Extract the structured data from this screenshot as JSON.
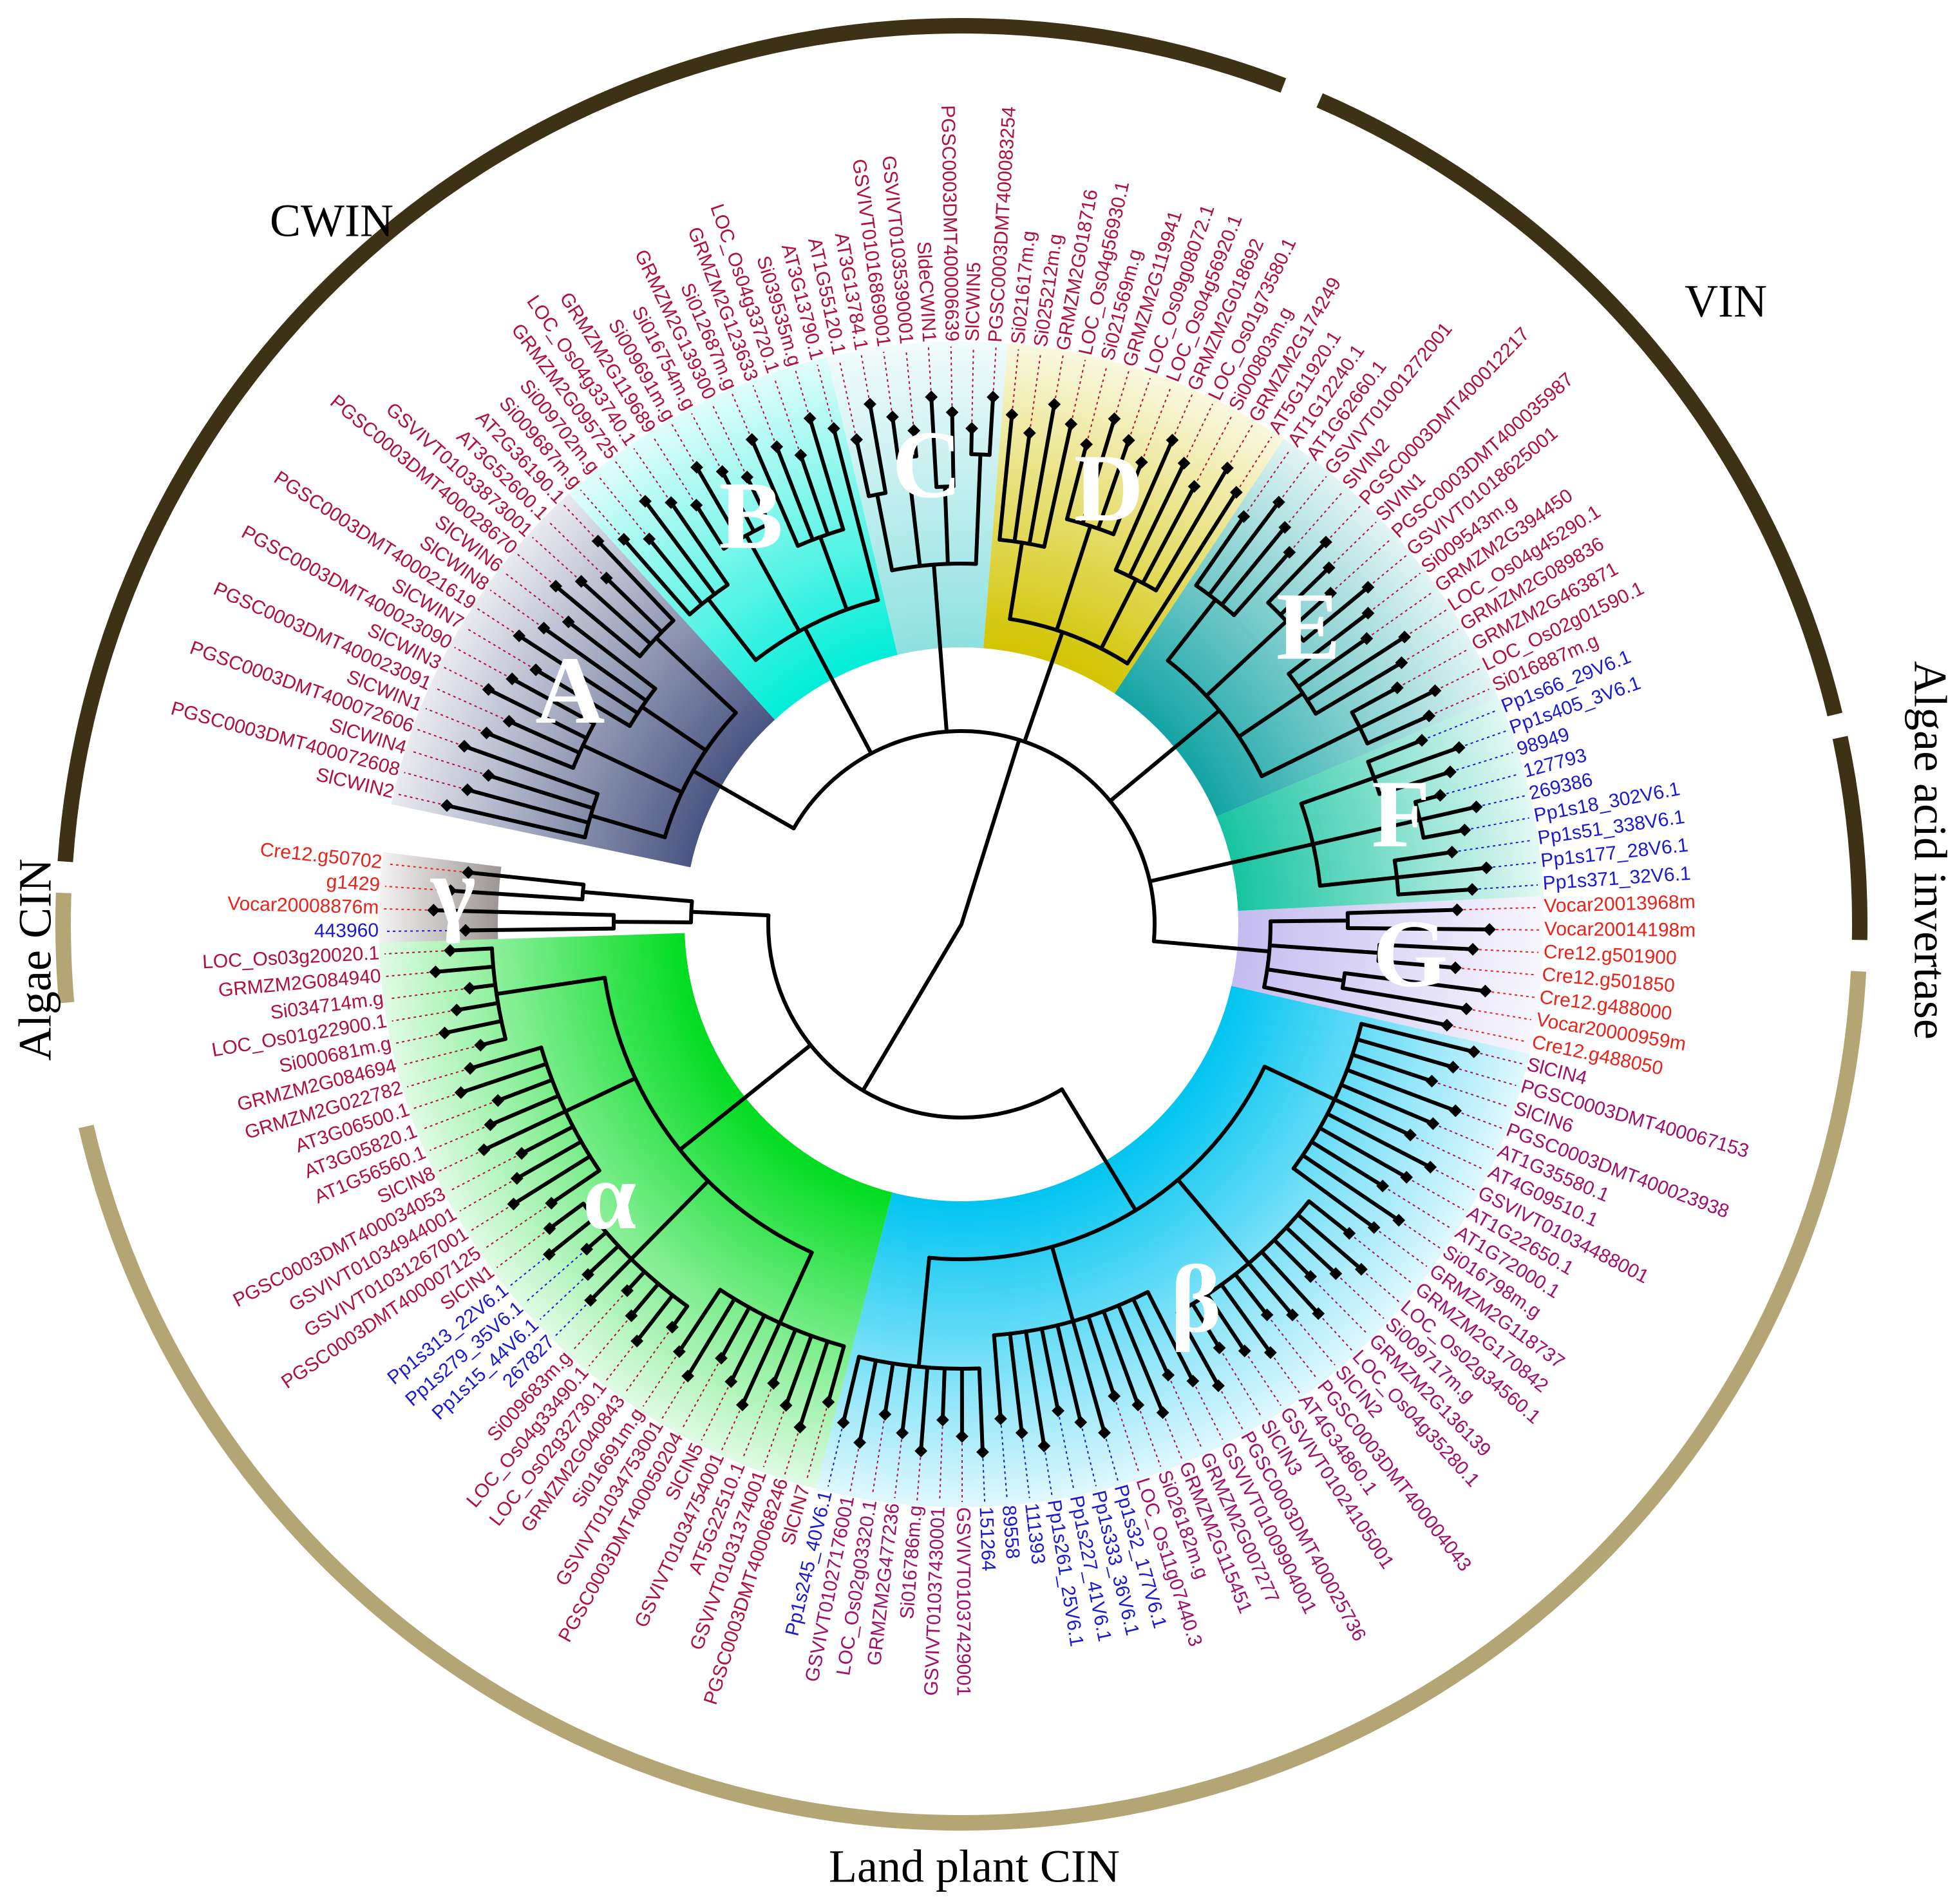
{
  "outer_groups": [
    {
      "label": "CWIN",
      "color": "#3d3216"
    },
    {
      "label": "VIN",
      "color": "#3d3216"
    },
    {
      "label": "Algae acid invertase",
      "color": "#3d3216"
    },
    {
      "label": "Land plant CIN",
      "color": "#b3a574"
    },
    {
      "label": "Algae CIN",
      "color": "#b3a574"
    }
  ],
  "clades": [
    {
      "label": "A",
      "color": "#4a5582",
      "leaves": [
        {
          "label": "SlCWIN2",
          "color": "#b0103c"
        },
        {
          "label": "PGSC0003DMT400072608",
          "color": "#b0103c"
        },
        {
          "label": "SlCWIN4",
          "color": "#b0103c"
        },
        {
          "label": "PGSC0003DMT400072606",
          "color": "#b0103c"
        },
        {
          "label": "SlCWIN1",
          "color": "#b0103c"
        },
        {
          "label": "PGSC0003DMT400023091",
          "color": "#b0103c"
        },
        {
          "label": "SlCWIN3",
          "color": "#b0103c"
        },
        {
          "label": "PGSC0003DMT400023090",
          "color": "#b0103c"
        },
        {
          "label": "SlCWIN7",
          "color": "#b0103c"
        },
        {
          "label": "PGSC0003DMT400021619",
          "color": "#b0103c"
        },
        {
          "label": "SlCWIN8",
          "color": "#b0103c"
        },
        {
          "label": "SlCWIN6",
          "color": "#b0103c"
        },
        {
          "label": "PGSC0003DMT400028670",
          "color": "#b0103c"
        },
        {
          "label": "GSVIVT01033873001",
          "color": "#b0103c"
        },
        {
          "label": "AT3G52600.1",
          "color": "#b0103c"
        },
        {
          "label": "AT2G36190.1",
          "color": "#b0103c"
        }
      ]
    },
    {
      "label": "B",
      "color": "#00eed8",
      "leaves": [
        {
          "label": "Si009687m.g",
          "color": "#b0103c"
        },
        {
          "label": "Si009702m.g",
          "color": "#b0103c"
        },
        {
          "label": "GRMZM2G095725",
          "color": "#b0103c"
        },
        {
          "label": "LOC_Os04g33740.1",
          "color": "#b0103c"
        },
        {
          "label": "GRMZM2G119689",
          "color": "#b0103c"
        },
        {
          "label": "Si009691m.g",
          "color": "#b0103c"
        },
        {
          "label": "Si016754m.g",
          "color": "#b0103c"
        },
        {
          "label": "GRMZM2G139300",
          "color": "#b0103c"
        },
        {
          "label": "Si012687m.g",
          "color": "#b0103c"
        },
        {
          "label": "GRMZM2G123633",
          "color": "#b0103c"
        },
        {
          "label": "LOC_Os04g33720.1",
          "color": "#b0103c"
        },
        {
          "label": "Si039535m.g",
          "color": "#b0103c"
        },
        {
          "label": "AT3G13790.1",
          "color": "#b0103c"
        }
      ]
    },
    {
      "label": "C",
      "color": "#8ee0e0",
      "leaves": [
        {
          "label": "AT1G55120.1",
          "color": "#b0103c"
        },
        {
          "label": "AT3G13784.1",
          "color": "#b0103c"
        },
        {
          "label": "GSVIVT01016869001",
          "color": "#b0103c"
        },
        {
          "label": "GSVIVT01035390001",
          "color": "#b0103c"
        },
        {
          "label": "SldeCWIN1",
          "color": "#b0103c"
        },
        {
          "label": "PGSC0003DMT400006639",
          "color": "#b0103c"
        },
        {
          "label": "SlCWIN5",
          "color": "#b0103c"
        },
        {
          "label": "PGSC0003DMT400083254",
          "color": "#b0103c"
        }
      ]
    },
    {
      "label": "D",
      "color": "#d2c400",
      "leaves": [
        {
          "label": "Si021617m.g",
          "color": "#b0103c"
        },
        {
          "label": "Si025212m.g",
          "color": "#b0103c"
        },
        {
          "label": "GRMZM2G018716",
          "color": "#b0103c"
        },
        {
          "label": "LOC_Os04g56930.1",
          "color": "#b0103c"
        },
        {
          "label": "Si021569m.g",
          "color": "#b0103c"
        },
        {
          "label": "GRMZM2G119941",
          "color": "#b0103c"
        },
        {
          "label": "LOC_Os09g08072.1",
          "color": "#b0103c"
        },
        {
          "label": "LOC_Os04g56920.1",
          "color": "#b0103c"
        },
        {
          "label": "GRMZM2G018692",
          "color": "#b0103c"
        },
        {
          "label": "LOC_Os01g73580.1",
          "color": "#b0103c"
        },
        {
          "label": "Si000803m.g",
          "color": "#b0103c"
        },
        {
          "label": "GRMZM2G174249",
          "color": "#b0103c"
        },
        {
          "label": "AT5G11920.1",
          "color": "#b0103c"
        }
      ]
    },
    {
      "label": "E",
      "color": "#14a4a4",
      "leaves": [
        {
          "label": "AT1G12240.1",
          "color": "#b0103c"
        },
        {
          "label": "AT1G62660.1",
          "color": "#b0103c"
        },
        {
          "label": "GSVIVT01001272001",
          "color": "#b0103c"
        },
        {
          "label": "SlVIN2",
          "color": "#b0103c"
        },
        {
          "label": "PGSC0003DMT400012217",
          "color": "#b0103c"
        },
        {
          "label": "SlVIN1",
          "color": "#b0103c"
        },
        {
          "label": "PGSC0003DMT400035987",
          "color": "#b0103c"
        },
        {
          "label": "GSVIVT01018625001",
          "color": "#b0103c"
        },
        {
          "label": "Si009543m.g",
          "color": "#b0103c"
        },
        {
          "label": "GRMZM2G394450",
          "color": "#b0103c"
        },
        {
          "label": "LOC_Os04g45290.1",
          "color": "#b0103c"
        },
        {
          "label": "GRMZM2G089836",
          "color": "#b0103c"
        },
        {
          "label": "GRMZM2G463871",
          "color": "#b0103c"
        },
        {
          "label": "LOC_Os02g01590.1",
          "color": "#b0103c"
        },
        {
          "label": "Si016887m.g",
          "color": "#b0103c"
        }
      ]
    },
    {
      "label": "F",
      "color": "#16c4a0",
      "leaves": [
        {
          "label": "Pp1s66_29V6.1",
          "color": "#1a1ad0"
        },
        {
          "label": "Pp1s405_3V6.1",
          "color": "#1a1ad0"
        },
        {
          "label": "98949",
          "color": "#1a1ad0"
        },
        {
          "label": "127793",
          "color": "#1a1ad0"
        },
        {
          "label": "269386",
          "color": "#1a1ad0"
        },
        {
          "label": "Pp1s18_302V6.1",
          "color": "#1a1ad0"
        },
        {
          "label": "Pp1s51_338V6.1",
          "color": "#1a1ad0"
        },
        {
          "label": "Pp1s177_28V6.1",
          "color": "#1a1ad0"
        },
        {
          "label": "Pp1s371_32V6.1",
          "color": "#1a1ad0"
        }
      ]
    },
    {
      "label": "G",
      "color": "#c4bcf0",
      "leaves": [
        {
          "label": "Vocar20013968m",
          "color": "#e8231c"
        },
        {
          "label": "Vocar20014198m",
          "color": "#e8231c"
        },
        {
          "label": "Cre12.g501900",
          "color": "#e8231c"
        },
        {
          "label": "Cre12.g501850",
          "color": "#e8231c"
        },
        {
          "label": "Cre12.g488000",
          "color": "#e8231c"
        },
        {
          "label": "Vocar20000959m",
          "color": "#e8231c"
        },
        {
          "label": "Cre12.g488050",
          "color": "#e8231c"
        }
      ]
    },
    {
      "label": "β",
      "color": "#00c4f0",
      "leaves": [
        {
          "label": "SlCIN4",
          "color": "#a0106a"
        },
        {
          "label": "PGSC0003DMT400067153",
          "color": "#a0106a"
        },
        {
          "label": "SlCIN6",
          "color": "#a0106a"
        },
        {
          "label": "PGSC0003DMT400023938",
          "color": "#a0106a"
        },
        {
          "label": "AT1G35580.1",
          "color": "#a0106a"
        },
        {
          "label": "AT4G09510.1",
          "color": "#a0106a"
        },
        {
          "label": "GSVIVT01034488001",
          "color": "#a0106a"
        },
        {
          "label": "AT1G22650.1",
          "color": "#a0106a"
        },
        {
          "label": "AT1G72000.1",
          "color": "#a0106a"
        },
        {
          "label": "Si016798m.g",
          "color": "#a0106a"
        },
        {
          "label": "GRMZM2G118737",
          "color": "#a0106a"
        },
        {
          "label": "GRMZM2G170842",
          "color": "#a0106a"
        },
        {
          "label": "LOC_Os02g34560.1",
          "color": "#a0106a"
        },
        {
          "label": "Si009717m.g",
          "color": "#a0106a"
        },
        {
          "label": "GRMZM2G136139",
          "color": "#a0106a"
        },
        {
          "label": "LOC_Os04g35280.1",
          "color": "#a0106a"
        },
        {
          "label": "SlCIN2",
          "color": "#a0106a"
        },
        {
          "label": "PGSC0003DMT400004043",
          "color": "#a0106a"
        },
        {
          "label": "AT4G34860.1",
          "color": "#a0106a"
        },
        {
          "label": "GSVIVT01024105001",
          "color": "#a0106a"
        },
        {
          "label": "SlCIN3",
          "color": "#a0106a"
        },
        {
          "label": "PGSC0003DMT400025736",
          "color": "#a0106a"
        },
        {
          "label": "GSVIVT01009904001",
          "color": "#a0106a"
        },
        {
          "label": "GRMZM2G007277",
          "color": "#a0106a"
        },
        {
          "label": "GRMZM2G115451",
          "color": "#a0106a"
        },
        {
          "label": "Si026182m.g",
          "color": "#a0106a"
        },
        {
          "label": "LOC_Os11g07440.3",
          "color": "#a0106a"
        },
        {
          "label": "Pp1s32_177V6.1",
          "color": "#1a1ad0"
        },
        {
          "label": "Pp1s333_36V6.1",
          "color": "#1a1ad0"
        },
        {
          "label": "Pp1s227_41V6.1",
          "color": "#1a1ad0"
        },
        {
          "label": "Pp1s261_25V6.1",
          "color": "#1a1ad0"
        },
        {
          "label": "111393",
          "color": "#1a1ad0"
        },
        {
          "label": "89558",
          "color": "#1a1ad0"
        },
        {
          "label": "151264",
          "color": "#1a1ad0"
        },
        {
          "label": "GSVIVT01037429001",
          "color": "#a0106a"
        },
        {
          "label": "GSVIVT01037430001",
          "color": "#a0106a"
        },
        {
          "label": "Si016786m.g",
          "color": "#a0106a"
        },
        {
          "label": "GRMZM2G477236",
          "color": "#a0106a"
        },
        {
          "label": "LOC_Os02g03320.1",
          "color": "#a0106a"
        },
        {
          "label": "GSVIVT01027176001",
          "color": "#a0106a"
        },
        {
          "label": "Pp1s245_40V6.1",
          "color": "#1a1ad0"
        }
      ]
    },
    {
      "label": "α",
      "color": "#00dc20",
      "leaves": [
        {
          "label": "SlCIN7",
          "color": "#b0103c"
        },
        {
          "label": "PGSC0003DMT400068246",
          "color": "#b0103c"
        },
        {
          "label": "GSVIVT01031374001",
          "color": "#b0103c"
        },
        {
          "label": "AT5G22510.1",
          "color": "#b0103c"
        },
        {
          "label": "GSVIVT01034754001",
          "color": "#b0103c"
        },
        {
          "label": "SlCIN5",
          "color": "#b0103c"
        },
        {
          "label": "PGSC0003DMT400050204",
          "color": "#b0103c"
        },
        {
          "label": "GSVIVT01034753001",
          "color": "#b0103c"
        },
        {
          "label": "Si016691m.g",
          "color": "#b0103c"
        },
        {
          "label": "GRMZM2G040843",
          "color": "#b0103c"
        },
        {
          "label": "LOC_Os02g32730.1",
          "color": "#b0103c"
        },
        {
          "label": "LOC_Os04g33490.1",
          "color": "#b0103c"
        },
        {
          "label": "Si009683m.g",
          "color": "#b0103c"
        },
        {
          "label": "267827",
          "color": "#1a1ad0"
        },
        {
          "label": "Pp1s15_44V6.1",
          "color": "#1a1ad0"
        },
        {
          "label": "Pp1s279_35V6.1",
          "color": "#1a1ad0"
        },
        {
          "label": "Pp1s313_22V6.1",
          "color": "#1a1ad0"
        },
        {
          "label": "SlCIN1",
          "color": "#b0103c"
        },
        {
          "label": "PGSC0003DMT400007125",
          "color": "#b0103c"
        },
        {
          "label": "GSVIVT01031267001",
          "color": "#b0103c"
        },
        {
          "label": "GSVIVT01034944001",
          "color": "#b0103c"
        },
        {
          "label": "PGSC0003DMT400034053",
          "color": "#b0103c"
        },
        {
          "label": "SlCIN8",
          "color": "#b0103c"
        },
        {
          "label": "AT1G56560.1",
          "color": "#b0103c"
        },
        {
          "label": "AT3G05820.1",
          "color": "#b0103c"
        },
        {
          "label": "AT3G06500.1",
          "color": "#b0103c"
        },
        {
          "label": "GRMZM2G022782",
          "color": "#b0103c"
        },
        {
          "label": "GRMZM2G084694",
          "color": "#b0103c"
        },
        {
          "label": "Si000681m.g",
          "color": "#b0103c"
        },
        {
          "label": "LOC_Os01g22900.1",
          "color": "#b0103c"
        },
        {
          "label": "Si034714m.g",
          "color": "#b0103c"
        },
        {
          "label": "GRMZM2G084940",
          "color": "#b0103c"
        },
        {
          "label": "LOC_Os03g20020.1",
          "color": "#b0103c"
        }
      ]
    },
    {
      "label": "γ",
      "color": "#9c9694",
      "leaves": [
        {
          "label": "443960",
          "color": "#1a1ad0"
        },
        {
          "label": "Vocar20008876m",
          "color": "#e8231c"
        },
        {
          "label": "g1429",
          "color": "#e8231c"
        },
        {
          "label": "Cre12.g50702",
          "color": "#e8231c"
        }
      ]
    }
  ]
}
